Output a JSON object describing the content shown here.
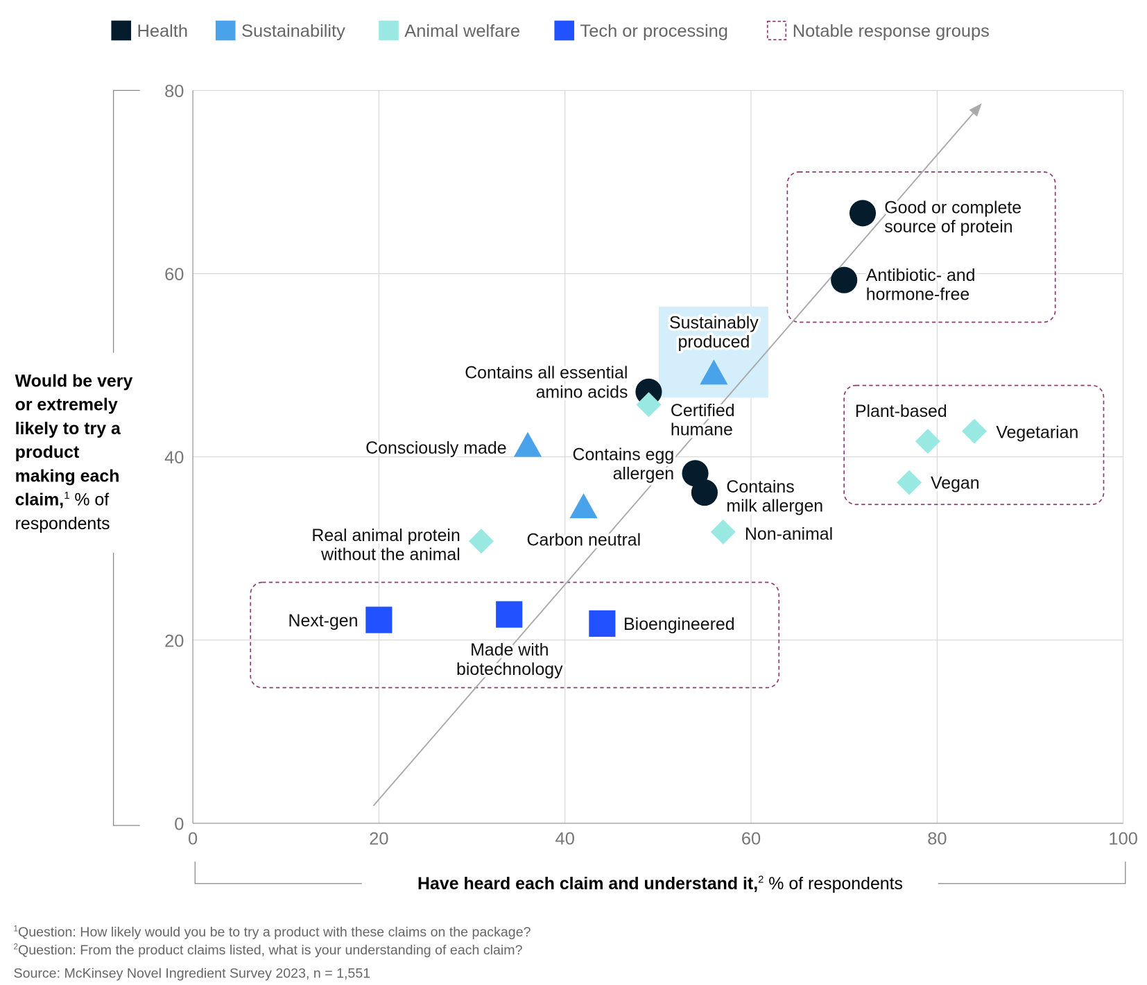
{
  "legend": [
    {
      "label": "Health",
      "color": "#051c2c",
      "style": "solid"
    },
    {
      "label": "Sustainability",
      "color": "#4aa3ea",
      "style": "solid"
    },
    {
      "label": "Animal welfare",
      "color": "#99e9e2",
      "style": "solid"
    },
    {
      "label": "Tech or processing",
      "color": "#2251ff",
      "style": "solid"
    },
    {
      "label": "Notable response groups",
      "color": "#8e3a6e",
      "style": "dashed"
    }
  ],
  "chart_data": {
    "type": "scatter",
    "xlabel": {
      "bold": "Have heard each claim and understand it,",
      "sup": "2",
      "rest": " % of respondents"
    },
    "ylabel": {
      "bold_lines": [
        "Would be very",
        "or extremely",
        "likely to try a",
        "product",
        "making each",
        "claim,"
      ],
      "sup": "1",
      "rest_lines": [
        " % of",
        "respondents"
      ]
    },
    "xlim": [
      0,
      100
    ],
    "ylim": [
      0,
      80
    ],
    "xticks": [
      "0",
      "20",
      "40",
      "60",
      "80",
      "100"
    ],
    "yticks": [
      "0",
      "20",
      "40",
      "60",
      "80"
    ],
    "grid": true,
    "legend_position": "top",
    "points": [
      {
        "label": [
          "Good or complete",
          "source of protein"
        ],
        "category": "Health",
        "shape": "circle",
        "x": 72,
        "y": 66.6
      },
      {
        "label": [
          "Antibiotic- and",
          "hormone-free"
        ],
        "category": "Health",
        "shape": "circle",
        "x": 70,
        "y": 59.3
      },
      {
        "label": [
          "Contains all essential",
          "amino acids"
        ],
        "category": "Health",
        "shape": "circle",
        "x": 49,
        "y": 47.1
      },
      {
        "label": [
          "Contains egg",
          "allergen"
        ],
        "category": "Health",
        "shape": "circle",
        "x": 54,
        "y": 38.2
      },
      {
        "label": [
          "Contains",
          "milk allergen"
        ],
        "category": "Health",
        "shape": "circle",
        "x": 55,
        "y": 36.1
      },
      {
        "label": [
          "Sustainably",
          "produced"
        ],
        "category": "Sustainability",
        "shape": "triangle",
        "x": 56,
        "y": 49.1,
        "highlighted": true
      },
      {
        "label": [
          "Consciously made"
        ],
        "category": "Sustainability",
        "shape": "triangle",
        "x": 36,
        "y": 41.2
      },
      {
        "label": [
          "Carbon neutral"
        ],
        "category": "Sustainability",
        "shape": "triangle",
        "x": 42,
        "y": 34.5
      },
      {
        "label": [
          "Certified",
          "humane"
        ],
        "category": "Animal welfare",
        "shape": "diamond",
        "x": 49,
        "y": 45.7
      },
      {
        "label": [
          "Plant-based"
        ],
        "category": "Animal welfare",
        "shape": "diamond",
        "x": 79,
        "y": 41.7
      },
      {
        "label": [
          "Vegetarian"
        ],
        "category": "Animal welfare",
        "shape": "diamond",
        "x": 84,
        "y": 42.8
      },
      {
        "label": [
          "Vegan"
        ],
        "category": "Animal welfare",
        "shape": "diamond",
        "x": 77,
        "y": 37.2
      },
      {
        "label": [
          "Non-animal"
        ],
        "category": "Animal welfare",
        "shape": "diamond",
        "x": 57,
        "y": 31.8
      },
      {
        "label": [
          "Real animal protein",
          "without the animal"
        ],
        "category": "Animal welfare",
        "shape": "diamond",
        "x": 31,
        "y": 30.8
      },
      {
        "label": [
          "Next-gen"
        ],
        "category": "Tech or processing",
        "shape": "square",
        "x": 20,
        "y": 22.2
      },
      {
        "label": [
          "Made with",
          "biotechnology"
        ],
        "category": "Tech or processing",
        "shape": "square",
        "x": 34,
        "y": 22.8
      },
      {
        "label": [
          "Bioengineered"
        ],
        "category": "Tech or processing",
        "shape": "square",
        "x": 44,
        "y": 21.8
      }
    ],
    "trend_arrow": {
      "from": [
        19.4,
        1.9
      ],
      "to": [
        84.8,
        78.6
      ],
      "color": "#aaaaaa"
    },
    "notable_groups": [
      {
        "x": [
          63.9,
          92.7
        ],
        "y": [
          54.7,
          71.1
        ]
      },
      {
        "x": [
          70,
          97.9
        ],
        "y": [
          34.8,
          47.8
        ]
      },
      {
        "x": [
          6.2,
          63
        ],
        "y": [
          14.8,
          26.3
        ]
      }
    ],
    "highlight_color": "#d4eefb"
  },
  "footnotes": [
    {
      "sup": "1",
      "text": "Question: How likely would you be to try a product with these claims on the package?"
    },
    {
      "sup": "2",
      "text": "Question: From the product claims listed, what is your understanding of each claim?"
    },
    {
      "sup": "",
      "text": " Source: McKinsey Novel Ingredient Survey 2023, n = 1,551"
    }
  ]
}
